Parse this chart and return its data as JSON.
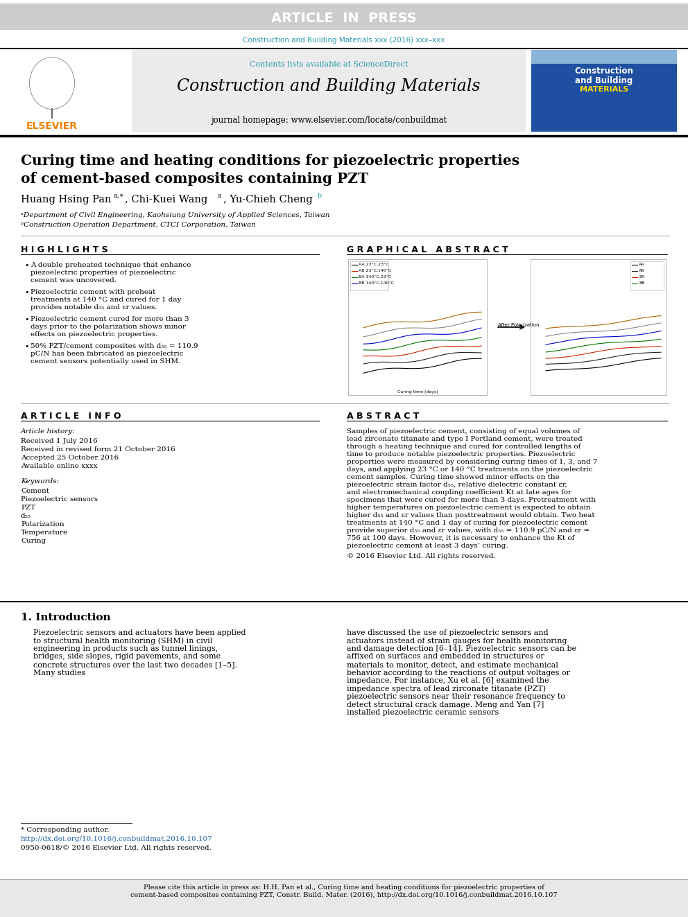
{
  "article_in_press_bg": "#c8c8c8",
  "article_in_press_text": "ARTICLE  IN  PRESS",
  "journal_ref_color": "#2a9aac",
  "journal_ref_text": "Construction and Building Materials xxx (2016) xxx–xxx",
  "sciencedirect_color": "#2a9aac",
  "contents_text": "Contents lists available at ScienceDirect",
  "journal_name": "Construction and Building Materials",
  "homepage_text": "journal homepage: www.elsevier.com/locate/conbuildmat",
  "elsevier_color": "#f08000",
  "paper_title_line1": "Curing time and heating conditions for piezoelectric properties",
  "paper_title_line2": "of cement-based composites containing PZT",
  "affil1": "ᵃDepartment of Civil Engineering, Kaohsiung University of Applied Sciences, Taiwan",
  "affil2": "ᵇConstruction Operation Department, CTCI Corporation, Taiwan",
  "highlights_title": "H I G H L I G H T S",
  "highlights": [
    "A double preheated technique that enhance piezoelectric properties of piezoelectric cement was uncovered.",
    "Piezoelectric cement with preheat treatments at 140 °C and cured for 1 day provides notable d₅₅ and εr values.",
    "Piezoelectric cement cured for more than 3 days prior to the polarization shows minor effects on piezoelectric properties.",
    "50% PZT/cement composites with d₅₅ = 110.9 pC/N has been fabricated as piezoelectric cement sensors potentially used in SHM."
  ],
  "graphical_abstract_title": "G R A P H I C A L   A B S T R A C T",
  "article_info_title": "A R T I C L E   I N F O",
  "article_history": "Article history:",
  "received": "Received 1 July 2016",
  "revised": "Received in revised form 21 October 2016",
  "accepted": "Accepted 25 October 2016",
  "available": "Available online xxxx",
  "keywords_title": "Keywords:",
  "keywords": [
    "Cement",
    "Piezoelectric sensors",
    "PZT",
    "d₅₅",
    "Polarization",
    "Temperature",
    "Curing"
  ],
  "abstract_title": "A B S T R A C T",
  "abstract_text": "Samples of piezoelectric cement, consisting of equal volumes of lead zirconate titanate and type I Portland cement, were treated through a heating technique and cured for controlled lengths of time to produce notable piezoelectric properties. Piezoelectric properties were measured by considering curing times of 1, 3, and 7 days, and applying 23 °C or 140 °C treatments on the piezoelectric cement samples. Curing time showed minor effects on the piezoelectric strain factor d₅₅, relative dielectric constant εr, and electromechanical coupling coefficient Kt at late ages for specimens that were cured for more than 3 days. Pretreatment with higher temperatures on piezoelectric cement is expected to obtain higher d₅₅ and εr values than posttreatment would obtain. Two heat treatments at 140 °C and 1 day of curing for piezoelectric cement provide superior d₅₅ and εr values, with d₅₅ = 110.9 pC/N and εr = 756 at 100 days. However, it is necessary to enhance the Kt of piezoelectric cement at least 3 days’ curing.",
  "copyright_text": "© 2016 Elsevier Ltd. All rights reserved.",
  "intro_title": "1. Introduction",
  "intro_text1": "Piezoelectric sensors and actuators have been applied to structural health monitoring (SHM) in civil engineering in products such as tunnel linings, bridges, side slopes, rigid pavements, and some concrete structures over the last two decades [1–5]. Many studies",
  "intro_text2": "have discussed the use of piezoelectric sensors and actuators instead of strain gauges for health monitoring and damage detection [6–14]. Piezoelectric sensors can be affixed on surfaces and embedded in structures or materials to monitor, detect, and estimate mechanical behavior according to the reactions of output voltages or impedance. For instance, Xu et al. [6] examined the impedance spectra of lead zirconate titanate (PZT) piezoelectric sensors near their resonance frequency to detect structural crack damage. Meng and Yan [7] installed piezoelectric ceramic sensors",
  "footer_corr": "* Corresponding author.",
  "footer_doi": "http://dx.doi.org/10.1016/j.conbuildmat.2016.10.107",
  "footer_issn": "0950-0618/© 2016 Elsevier Ltd. All rights reserved.",
  "cite_bar_text": "Please cite this article in press as: H.H. Pan et al., Curing time and heating conditions for piezoelectric properties of cement-based composites containing PZT, Constr. Build. Mater. (2016), http://dx.doi.org/10.1016/j.conbuildmat.2016.10.107",
  "cite_bar_bg": "#e8e8e8",
  "header_gray": "#cccccc",
  "doi_color": "#1a5fa8"
}
